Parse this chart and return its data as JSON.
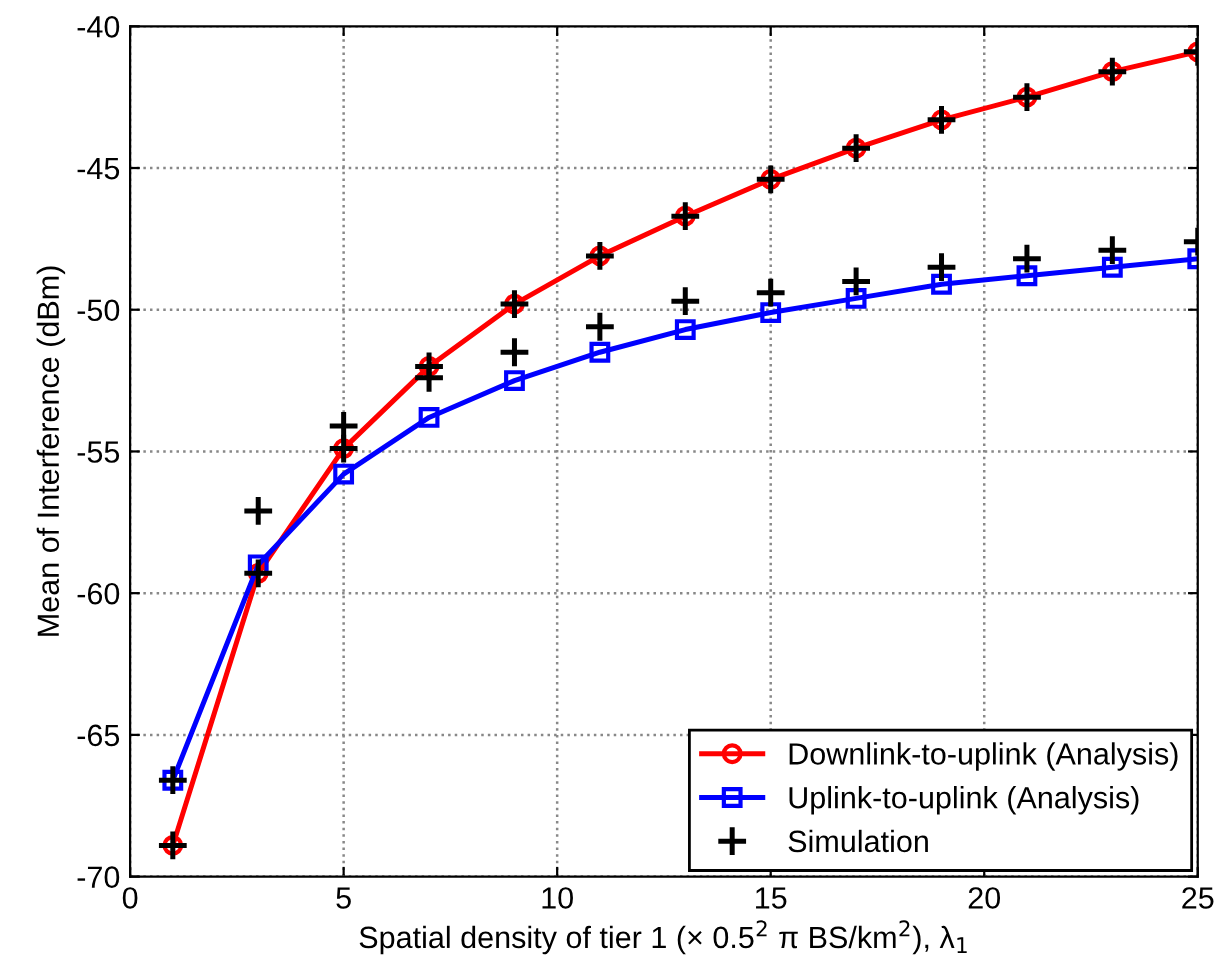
{
  "chart_data": {
    "type": "line",
    "xlabel": "Spatial density of tier 1 (× 0.5$^{2}$ π BS/km$^{2}$), λ$_{1}$",
    "ylabel": "Mean of Interference (dBm)",
    "x": [
      1,
      3,
      5,
      7,
      9,
      11,
      13,
      15,
      17,
      19,
      21,
      23,
      25
    ],
    "series": [
      {
        "name": "Downlink-to-uplink (Analysis)",
        "color": "#ff0000",
        "marker": "circle",
        "values": [
          -68.9,
          -59.3,
          -54.9,
          -52.0,
          -49.8,
          -48.1,
          -46.7,
          -45.4,
          -44.3,
          -43.3,
          -42.5,
          -41.6,
          -40.9
        ]
      },
      {
        "name": "Uplink-to-uplink (Analysis)",
        "color": "#0000ff",
        "marker": "square",
        "values": [
          -66.6,
          -59.0,
          -55.8,
          -53.8,
          -52.5,
          -51.5,
          -50.7,
          -50.1,
          -49.6,
          -49.1,
          -48.8,
          -48.5,
          -48.2
        ]
      },
      {
        "name": "Simulation",
        "type": "scatter",
        "color": "#000000",
        "marker": "cross",
        "x": [
          1,
          3,
          5,
          7,
          9,
          11,
          13,
          15,
          17,
          19,
          21,
          23,
          25,
          1,
          3,
          5,
          7,
          9,
          11,
          13,
          15,
          17,
          19,
          21,
          23,
          25
        ],
        "values": [
          -68.9,
          -59.3,
          -54.9,
          -52.0,
          -49.8,
          -48.1,
          -46.7,
          -45.4,
          -44.3,
          -43.3,
          -42.5,
          -41.6,
          -40.9,
          -66.6,
          -57.1,
          -54.1,
          -52.4,
          -51.5,
          -50.6,
          -49.7,
          -49.4,
          -49.0,
          -48.5,
          -48.2,
          -47.9,
          -47.6
        ]
      }
    ],
    "xlim": [
      0,
      25
    ],
    "xticks": [
      0,
      5,
      10,
      15,
      20,
      25
    ],
    "ylim": [
      -70,
      -40
    ],
    "yticks": [
      -70,
      -65,
      -60,
      -55,
      -50,
      -45,
      -40
    ],
    "grid": true,
    "legend": "bottom right"
  }
}
